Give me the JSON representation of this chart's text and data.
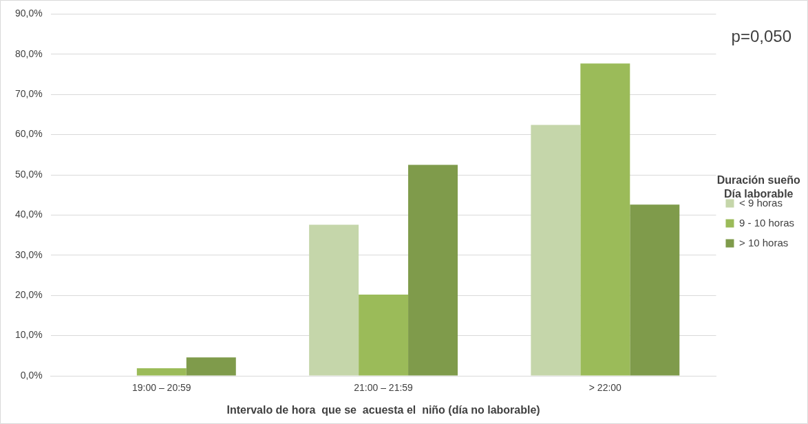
{
  "chart_data": {
    "type": "bar",
    "xlabel": "Intervalo de hora  que se  acuesta el  niño (día no laborable)",
    "legend_title": "Duración sueño\nDía laborable",
    "annotations": [
      "p=0,050"
    ],
    "categories": [
      "19:00 – 20:59",
      "21:00 – 21:59",
      "> 22:00"
    ],
    "series": [
      {
        "name": "< 9 horas",
        "color": "#c5d6aa",
        "values": [
          0,
          37.6,
          62.4
        ]
      },
      {
        "name": "9 - 10 horas",
        "color": "#9bbb59",
        "values": [
          1.9,
          20.2,
          77.7
        ]
      },
      {
        "name": "> 10 horas",
        "color": "#7f9b4b",
        "values": [
          4.6,
          52.5,
          42.6
        ]
      }
    ],
    "ylim": [
      0,
      90
    ],
    "yticks": [
      {
        "value": 0,
        "label": "0,0%"
      },
      {
        "value": 10,
        "label": "10,0%"
      },
      {
        "value": 20,
        "label": "20,0%"
      },
      {
        "value": 30,
        "label": "30,0%"
      },
      {
        "value": 40,
        "label": "40,0%"
      },
      {
        "value": 50,
        "label": "50,0%"
      },
      {
        "value": 60,
        "label": "60,0%"
      },
      {
        "value": 70,
        "label": "70,0%"
      },
      {
        "value": 80,
        "label": "80,0%"
      },
      {
        "value": 90,
        "label": "90,0%"
      }
    ],
    "grid": "y",
    "legend": "right"
  }
}
